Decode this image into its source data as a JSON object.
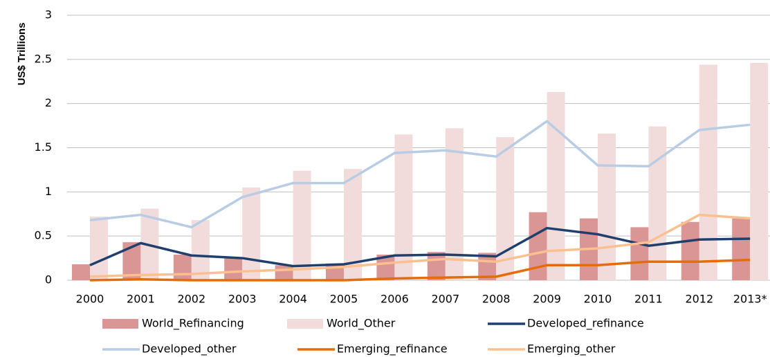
{
  "chart_data": {
    "type": "combo",
    "ylabel": "US$ Trillions",
    "categories": [
      "2000",
      "2001",
      "2002",
      "2003",
      "2004",
      "2005",
      "2006",
      "2007",
      "2008",
      "2009",
      "2010",
      "2011",
      "2012",
      "2013*"
    ],
    "ylim": [
      0,
      3
    ],
    "yticks": [
      0,
      0.5,
      1,
      1.5,
      2,
      2.5,
      3
    ],
    "grid": true,
    "series": [
      {
        "name": "World_Refinancing",
        "type": "bar",
        "color": "#d99694",
        "values": [
          0.18,
          0.43,
          0.29,
          0.26,
          0.17,
          0.19,
          0.29,
          0.32,
          0.31,
          0.77,
          0.7,
          0.6,
          0.66,
          0.7
        ]
      },
      {
        "name": "World_Other",
        "type": "bar",
        "color": "#f2dcdb",
        "values": [
          0.72,
          0.81,
          0.68,
          1.05,
          1.24,
          1.26,
          1.65,
          1.72,
          1.62,
          2.13,
          1.66,
          1.74,
          2.44,
          2.46
        ]
      },
      {
        "name": "Developed_refinance",
        "type": "line",
        "color": "#1f3f6e",
        "values": [
          0.17,
          0.42,
          0.28,
          0.25,
          0.16,
          0.18,
          0.28,
          0.29,
          0.27,
          0.59,
          0.52,
          0.39,
          0.46,
          0.47
        ]
      },
      {
        "name": "Developed_other",
        "type": "line",
        "color": "#b8cce4",
        "values": [
          0.68,
          0.74,
          0.6,
          0.94,
          1.1,
          1.1,
          1.44,
          1.47,
          1.4,
          1.8,
          1.3,
          1.29,
          1.7,
          1.76
        ]
      },
      {
        "name": "Emerging_refinance",
        "type": "line",
        "color": "#e46c0a",
        "values": [
          0.0,
          0.01,
          0.0,
          0.0,
          0.0,
          0.0,
          0.02,
          0.03,
          0.04,
          0.17,
          0.17,
          0.21,
          0.21,
          0.23
        ]
      },
      {
        "name": "Emerging_other",
        "type": "line",
        "color": "#fac090",
        "values": [
          0.04,
          0.06,
          0.07,
          0.1,
          0.12,
          0.15,
          0.2,
          0.24,
          0.21,
          0.33,
          0.36,
          0.43,
          0.74,
          0.7
        ]
      }
    ]
  }
}
